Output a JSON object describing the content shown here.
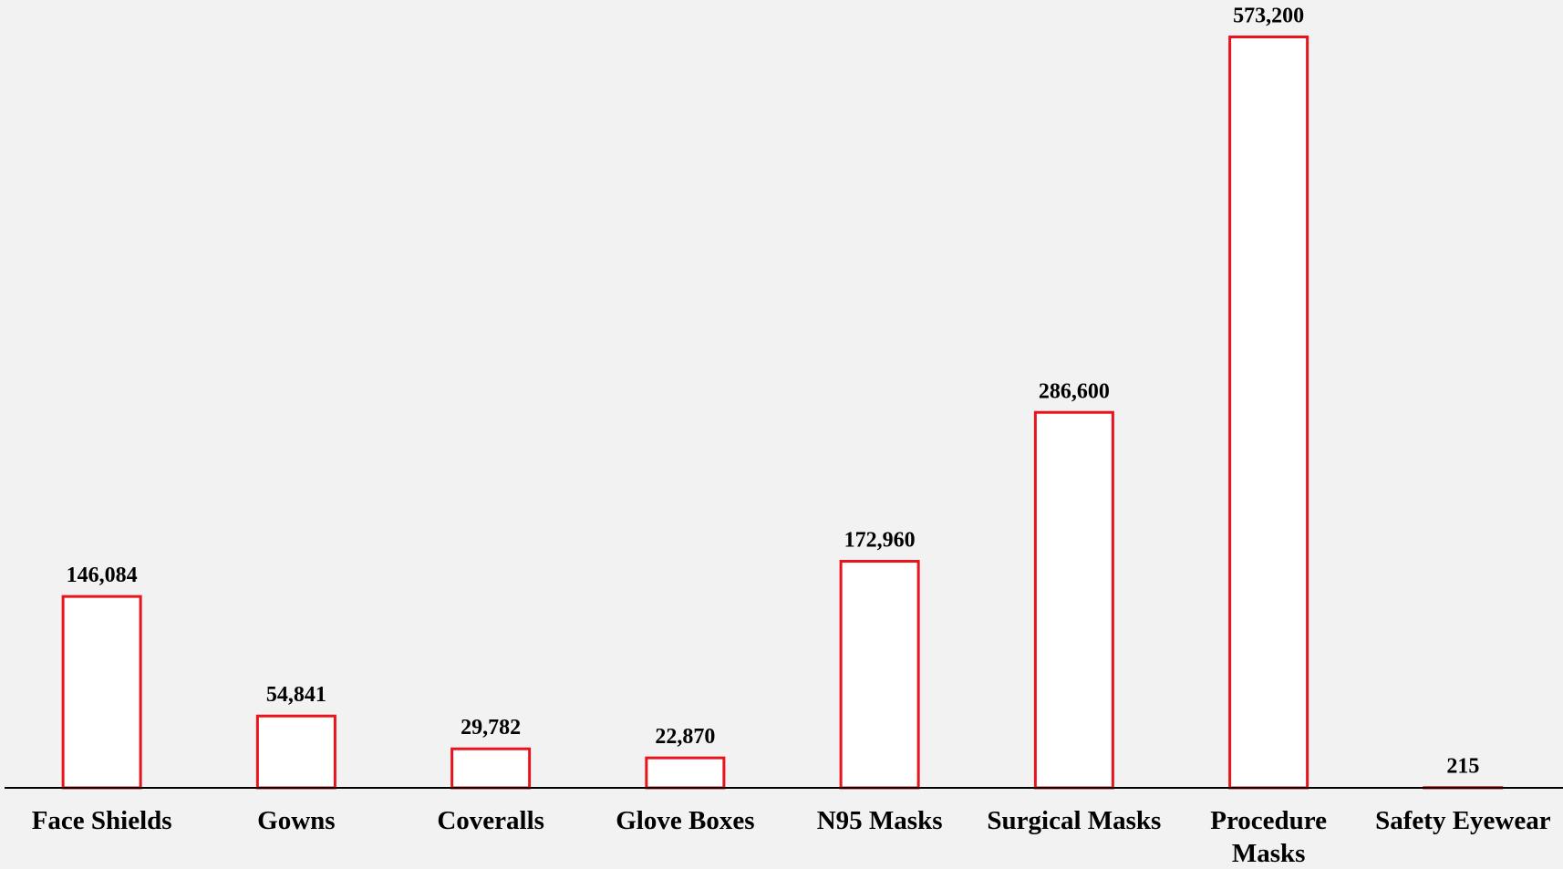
{
  "chart_data": {
    "type": "bar",
    "categories": [
      "Face Shields",
      "Gowns",
      "Coveralls",
      "Glove Boxes",
      "N95 Masks",
      "Surgical Masks",
      "Procedure Masks",
      "Safety Eyewear"
    ],
    "values": [
      146084,
      54841,
      29782,
      22870,
      172960,
      286600,
      573200,
      215
    ],
    "value_labels": [
      "146,084",
      "54,841",
      "29,782",
      "22,870",
      "172,960",
      "286,600",
      "573,200",
      "215"
    ],
    "color": "#e8141b",
    "ylim": [
      0,
      600000
    ]
  }
}
